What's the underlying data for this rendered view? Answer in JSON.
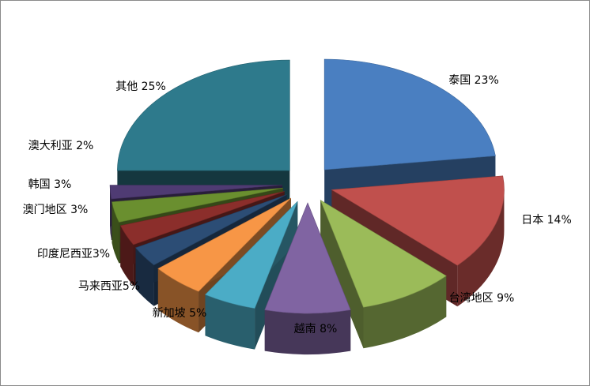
{
  "chart_data": {
    "type": "pie",
    "style": "3d-exploded",
    "title": "",
    "slices": [
      {
        "label": "泰国",
        "value": 23,
        "text": "泰国  23%",
        "color": "#4a7fc1"
      },
      {
        "label": "日本",
        "value": 14,
        "text": "日本 14%",
        "color": "#c0504d"
      },
      {
        "label": "台湾地区",
        "value": 9,
        "text": "台湾地区  9%",
        "color": "#9bbb59"
      },
      {
        "label": "越南",
        "value": 8,
        "text": "越南  8%",
        "color": "#8064a2"
      },
      {
        "label": "新加坡",
        "value": 5,
        "text": "新加坡  5%",
        "color": "#4bacc6"
      },
      {
        "label": "马来西亚",
        "value": 5,
        "text": "马来西亚5%",
        "color": "#f79646"
      },
      {
        "label": "印度尼西亚",
        "value": 3,
        "text": "印度尼西亚3%",
        "color": "#2c4d75"
      },
      {
        "label": "澳门地区",
        "value": 3,
        "text": "澳门地区 3%",
        "color": "#8b2e2b"
      },
      {
        "label": "韩国",
        "value": 3,
        "text": "韩国  3%",
        "color": "#6a8f2f"
      },
      {
        "label": "澳大利亚",
        "value": 2,
        "text": "澳大利亚  2%",
        "color": "#4f3b73"
      },
      {
        "label": "其他",
        "value": 25,
        "text": "其他  25%",
        "color": "#2e7a8c"
      }
    ],
    "legend": "none"
  }
}
